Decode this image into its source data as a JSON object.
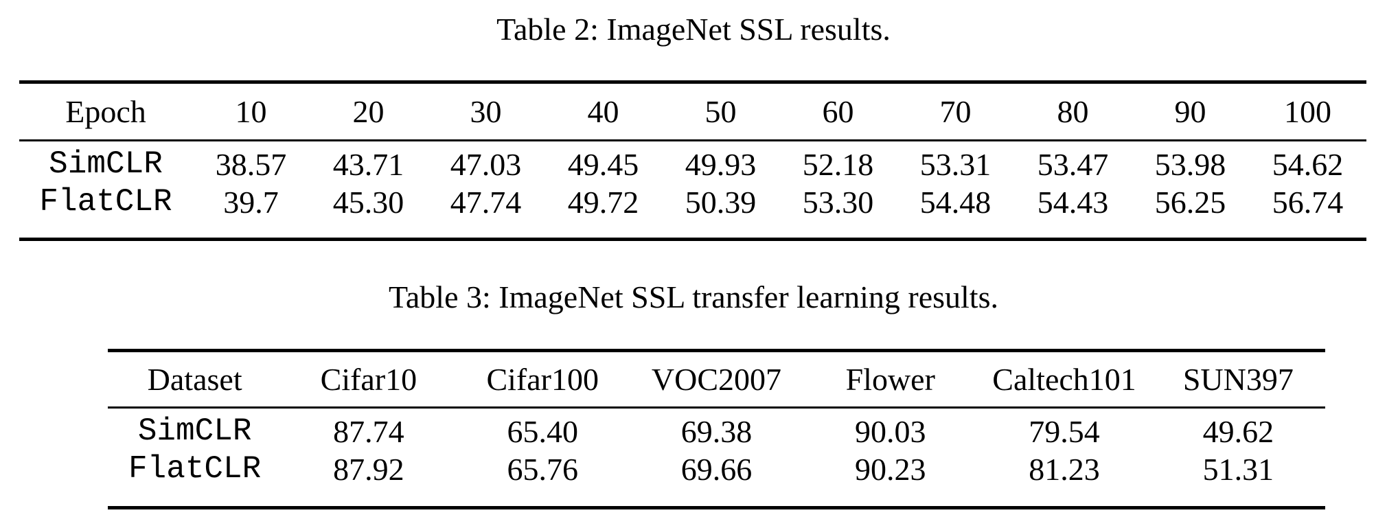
{
  "page": {
    "background": "#ffffff",
    "text_color": "#000000"
  },
  "table2": {
    "caption": "Table 2: ImageNet SSL results.",
    "columns": [
      "Epoch",
      "10",
      "20",
      "30",
      "40",
      "50",
      "60",
      "70",
      "80",
      "90",
      "100"
    ],
    "rows": [
      {
        "label": "SimCLR",
        "values": [
          "38.57",
          "43.71",
          "47.03",
          "49.45",
          "49.93",
          "52.18",
          "53.31",
          "53.47",
          "53.98",
          "54.62"
        ]
      },
      {
        "label": "FlatCLR",
        "values": [
          "39.7",
          "45.30",
          "47.74",
          "49.72",
          "50.39",
          "53.30",
          "54.48",
          "54.43",
          "56.25",
          "56.74"
        ]
      }
    ]
  },
  "table3": {
    "caption": "Table 3: ImageNet SSL transfer learning results.",
    "columns": [
      "Dataset",
      "Cifar10",
      "Cifar100",
      "VOC2007",
      "Flower",
      "Caltech101",
      "SUN397"
    ],
    "rows": [
      {
        "label": "SimCLR",
        "values": [
          "87.74",
          "65.40",
          "69.38",
          "90.03",
          "79.54",
          "49.62"
        ]
      },
      {
        "label": "FlatCLR",
        "values": [
          "87.92",
          "65.76",
          "69.66",
          "90.23",
          "81.23",
          "51.31"
        ]
      }
    ]
  }
}
